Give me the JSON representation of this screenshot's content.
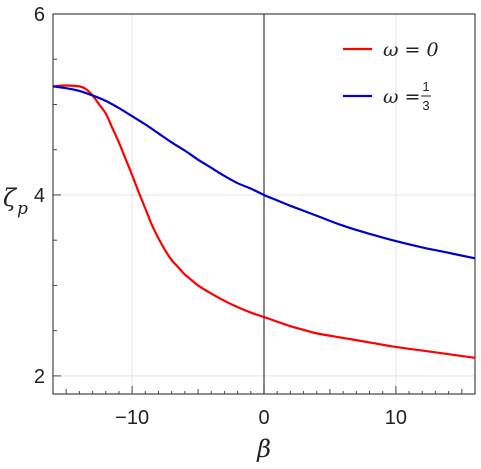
{
  "chart_data": {
    "type": "line",
    "xlabel": "β",
    "ylabel_main": "ζ",
    "ylabel_sub": "p",
    "xlim": [
      -16,
      16
    ],
    "ylim": [
      1.8,
      6.0
    ],
    "xticks": [
      -10,
      0,
      10
    ],
    "xtick_labels": [
      "−10",
      "0",
      "10"
    ],
    "yticks": [
      2,
      4,
      6
    ],
    "ytick_labels": [
      "2",
      "4",
      "6"
    ],
    "grid": true,
    "vertical_line_at_x": 0,
    "legend_position": "top-right",
    "series": [
      {
        "name": "ω = 0",
        "color": "#ff0000",
        "x": [
          -16,
          -15,
          -14,
          -13.5,
          -13,
          -12.5,
          -12,
          -11.5,
          -11,
          -10.5,
          -10,
          -9.5,
          -9,
          -8.5,
          -8,
          -7.5,
          -7,
          -6.5,
          -6,
          -5.5,
          -5,
          -4,
          -3,
          -2,
          -1,
          0,
          1,
          2,
          3,
          4,
          6,
          8,
          10,
          12,
          14,
          16
        ],
        "y": [
          5.2,
          5.21,
          5.2,
          5.17,
          5.1,
          5.0,
          4.9,
          4.74,
          4.58,
          4.4,
          4.22,
          4.03,
          3.85,
          3.67,
          3.52,
          3.39,
          3.28,
          3.2,
          3.12,
          3.06,
          3.0,
          2.91,
          2.83,
          2.76,
          2.7,
          2.65,
          2.6,
          2.55,
          2.51,
          2.47,
          2.42,
          2.37,
          2.32,
          2.28,
          2.24,
          2.2
        ]
      },
      {
        "name": "ω = 1/3",
        "label_prefix": "ω = ",
        "label_num": "1",
        "label_den": "3",
        "color": "#0000cc",
        "x": [
          -16,
          -15,
          -14,
          -13,
          -12,
          -11,
          -10,
          -9,
          -8,
          -7,
          -6,
          -5,
          -4,
          -3,
          -2,
          -1,
          0,
          1,
          2,
          4,
          6,
          8,
          10,
          12,
          14,
          16
        ],
        "y": [
          5.2,
          5.18,
          5.15,
          5.1,
          5.04,
          4.96,
          4.87,
          4.78,
          4.68,
          4.58,
          4.49,
          4.39,
          4.3,
          4.21,
          4.13,
          4.07,
          4.0,
          3.94,
          3.88,
          3.77,
          3.66,
          3.57,
          3.49,
          3.42,
          3.36,
          3.3
        ]
      }
    ]
  }
}
